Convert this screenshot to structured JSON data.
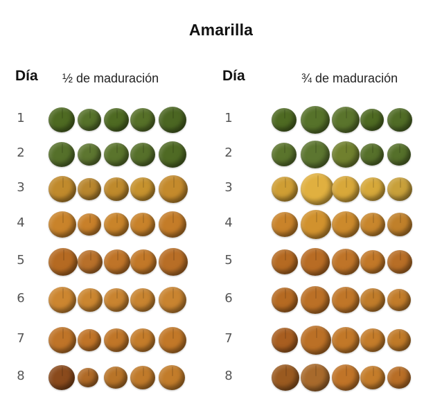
{
  "title": "Amarilla",
  "left_panel": {
    "day_header": "Día",
    "stage_label": "½ de maduración"
  },
  "right_panel": {
    "day_header": "Día",
    "stage_label": "¾ de maduración"
  },
  "days": [
    "1",
    "2",
    "3",
    "4",
    "5",
    "6",
    "7",
    "8"
  ],
  "colors": {
    "green_dark": "#4e6a22",
    "green_mid": "#5f7a2c",
    "yellow_green": "#9a8a2e",
    "yellow": "#d1a030",
    "yellow_light": "#e0b040",
    "orange": "#c9832a",
    "orange_dark": "#b56a22",
    "brown": "#8a4a1c"
  },
  "left_fruit_colors": [
    [
      "#4e6a22",
      "#56722a",
      "#4e6a22",
      "#567028",
      "#4b6622"
    ],
    [
      "#55702a",
      "#5d7630",
      "#5a742c",
      "#56702a",
      "#4f6a24"
    ],
    [
      "#c08a2c",
      "#b8862e",
      "#bf8a2c",
      "#c6922e",
      "#c48a2c"
    ],
    [
      "#c9832a",
      "#c8802a",
      "#c9842a",
      "#c8822a",
      "#c47c28"
    ],
    [
      "#b56a22",
      "#b8702a",
      "#bf7428",
      "#c27828",
      "#b86e26"
    ],
    [
      "#cc8630",
      "#cb8630",
      "#c98430",
      "#c88430",
      "#c98430"
    ],
    [
      "#bf7428",
      "#c07428",
      "#c07628",
      "#c47c2a",
      "#c27828"
    ],
    [
      "#8a4a1c",
      "#b06a26",
      "#b87428",
      "#c07a2a",
      "#c27c2a"
    ]
  ],
  "right_fruit_colors": [
    [
      "#4e6a22",
      "#56722a",
      "#5a742c",
      "#4e6a22",
      "#506c26"
    ],
    [
      "#5a742c",
      "#5c7630",
      "#70802e",
      "#56702a",
      "#55702a"
    ],
    [
      "#cf9e34",
      "#e0b040",
      "#d8a83a",
      "#d6a83a",
      "#c8a03a"
    ],
    [
      "#c9832a",
      "#d1922e",
      "#cc8a2c",
      "#c8862c",
      "#c0802a"
    ],
    [
      "#b56a22",
      "#b86c24",
      "#bf7428",
      "#c27828",
      "#b86e26"
    ],
    [
      "#b56a22",
      "#bb7026",
      "#c07628",
      "#c07c2a",
      "#c27c2a"
    ],
    [
      "#a85e20",
      "#bb7026",
      "#c27828",
      "#c47c2a",
      "#c07a28"
    ],
    [
      "#9a5a20",
      "#a86a2c",
      "#c07428",
      "#c47c2a",
      "#b86e26"
    ]
  ]
}
